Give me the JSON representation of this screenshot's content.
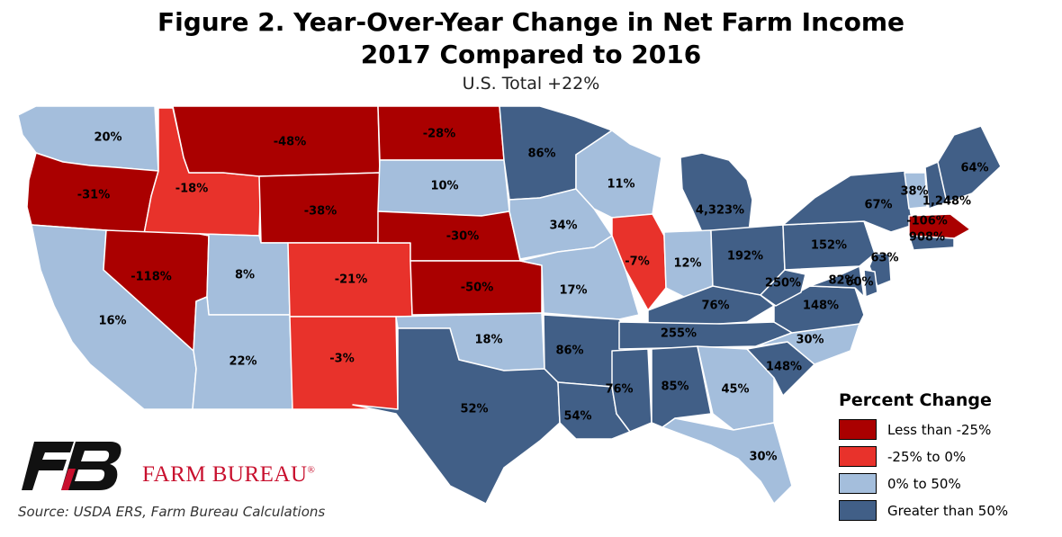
{
  "title_line1": "Figure 2. Year-Over-Year Change in Net Farm Income",
  "title_line2": "2017 Compared to 2016",
  "subtitle": "U.S. Total +22%",
  "legend": {
    "title": "Percent Change",
    "items": [
      {
        "label": "Less than -25%",
        "color": "#aa0000"
      },
      {
        "label": "-25% to 0%",
        "color": "#e8322b"
      },
      {
        "label": "0% to 50%",
        "color": "#a4bedc"
      },
      {
        "label": "Greater than 50%",
        "color": "#415f87"
      }
    ]
  },
  "states": [
    {
      "name": "WA",
      "label": "20%",
      "cat": 2
    },
    {
      "name": "OR",
      "label": "-31%",
      "cat": 0
    },
    {
      "name": "CA",
      "label": "16%",
      "cat": 2
    },
    {
      "name": "ID",
      "label": "-18%",
      "cat": 1
    },
    {
      "name": "NV",
      "label": "-118%",
      "cat": 0
    },
    {
      "name": "MT",
      "label": "-48%",
      "cat": 0
    },
    {
      "name": "WY",
      "label": "-38%",
      "cat": 0
    },
    {
      "name": "UT",
      "label": "8%",
      "cat": 2
    },
    {
      "name": "AZ",
      "label": "22%",
      "cat": 2
    },
    {
      "name": "CO",
      "label": "-21%",
      "cat": 1
    },
    {
      "name": "NM",
      "label": "-3%",
      "cat": 1
    },
    {
      "name": "ND",
      "label": "-28%",
      "cat": 0
    },
    {
      "name": "SD",
      "label": "10%",
      "cat": 2
    },
    {
      "name": "NE",
      "label": "-30%",
      "cat": 0
    },
    {
      "name": "KS",
      "label": "-50%",
      "cat": 0
    },
    {
      "name": "OK",
      "label": "18%",
      "cat": 2
    },
    {
      "name": "TX",
      "label": "52%",
      "cat": 3
    },
    {
      "name": "MN",
      "label": "86%",
      "cat": 3
    },
    {
      "name": "IA",
      "label": "34%",
      "cat": 2
    },
    {
      "name": "MO",
      "label": "17%",
      "cat": 2
    },
    {
      "name": "AR",
      "label": "86%",
      "cat": 3
    },
    {
      "name": "LA",
      "label": "54%",
      "cat": 3
    },
    {
      "name": "WI",
      "label": "11%",
      "cat": 2
    },
    {
      "name": "IL",
      "label": "-7%",
      "cat": 1
    },
    {
      "name": "MI",
      "label": "4,323%",
      "cat": 3
    },
    {
      "name": "IN",
      "label": "12%",
      "cat": 2
    },
    {
      "name": "OH",
      "label": "192%",
      "cat": 3
    },
    {
      "name": "KY",
      "label": "76%",
      "cat": 3
    },
    {
      "name": "TN",
      "label": "255%",
      "cat": 3
    },
    {
      "name": "MS",
      "label": "76%",
      "cat": 3
    },
    {
      "name": "AL",
      "label": "85%",
      "cat": 3
    },
    {
      "name": "GA",
      "label": "45%",
      "cat": 2
    },
    {
      "name": "FL",
      "label": "30%",
      "cat": 2
    },
    {
      "name": "SC",
      "label": "148%",
      "cat": 3
    },
    {
      "name": "NC",
      "label": "30%",
      "cat": 2
    },
    {
      "name": "VA",
      "label": "148%",
      "cat": 3
    },
    {
      "name": "WV",
      "label": "250%",
      "cat": 3
    },
    {
      "name": "PA",
      "label": "152%",
      "cat": 3
    },
    {
      "name": "NY",
      "label": "67%",
      "cat": 3
    },
    {
      "name": "VT",
      "label": "38%",
      "cat": 2
    },
    {
      "name": "NH",
      "label": "1,248%",
      "cat": 3
    },
    {
      "name": "ME",
      "label": "64%",
      "cat": 3
    },
    {
      "name": "MA",
      "label": "-106%",
      "cat": 0
    },
    {
      "name": "CT",
      "label": "908%",
      "cat": 3
    },
    {
      "name": "NJ",
      "label": "63%",
      "cat": 3
    },
    {
      "name": "MD",
      "label": "82%",
      "cat": 3
    },
    {
      "name": "DE",
      "label": "60%",
      "cat": 3
    }
  ],
  "brand": "FARM BUREAU",
  "brand_mark": "®",
  "source": "Source: USDA ERS, Farm Bureau Calculations"
}
